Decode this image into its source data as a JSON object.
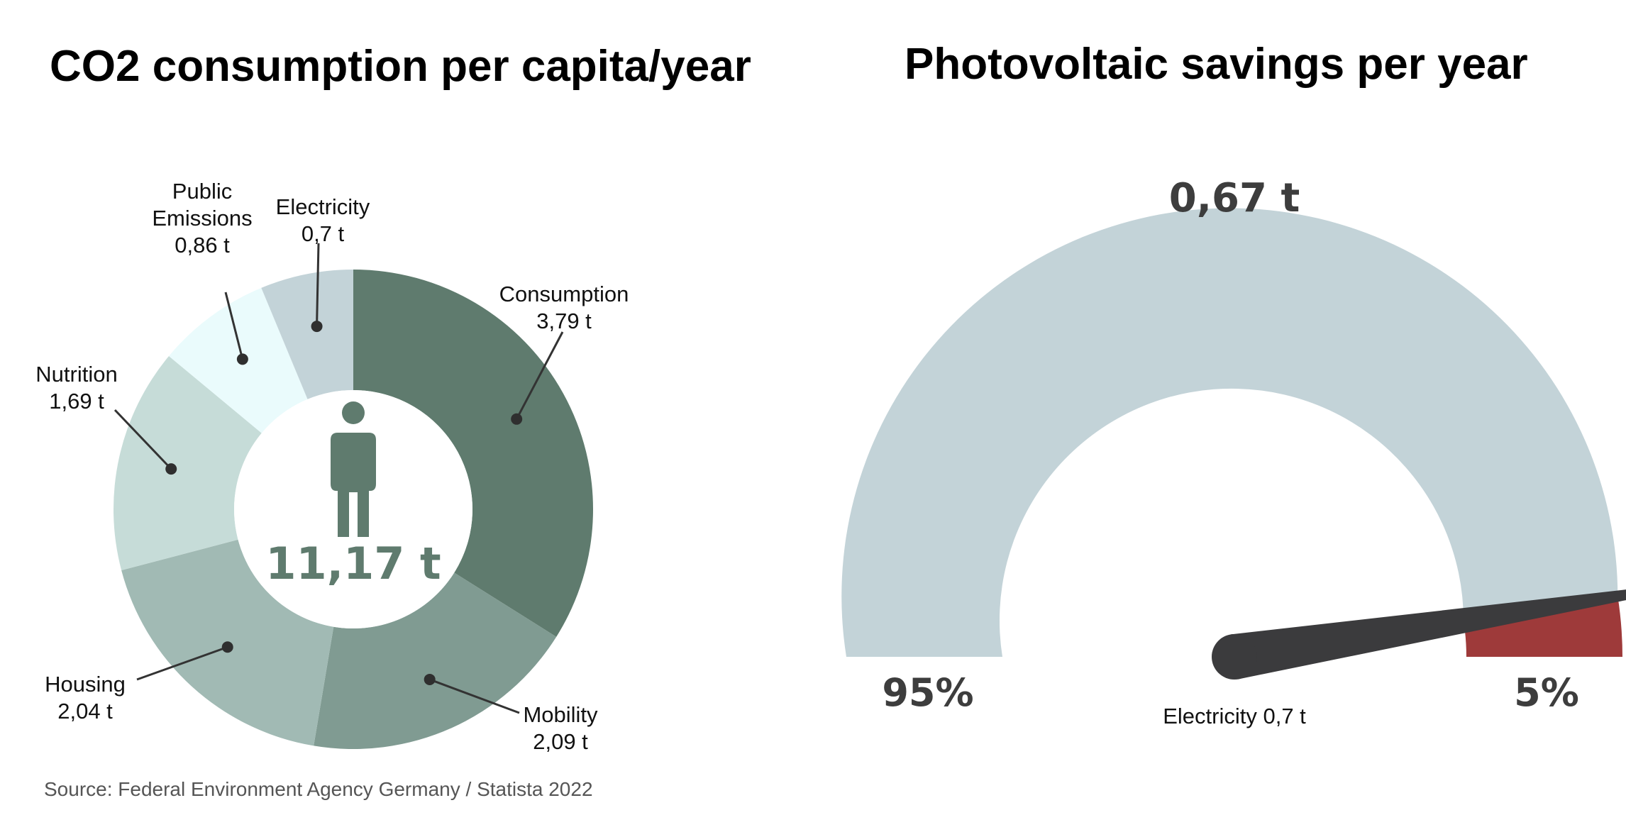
{
  "titles": {
    "left": "CO2 consumption per capita/year",
    "right": "Photovoltaic savings per year"
  },
  "source": "Source: Federal Environment Agency Germany / Statista 2022",
  "chart_data": [
    {
      "type": "pie",
      "title": "CO2 consumption per capita/year",
      "center_label": "11,17 t",
      "center_icon": "person-icon",
      "slices": [
        {
          "name": "Consumption",
          "value": 3.79,
          "label": "3,79 t",
          "color": "#5f7b6e"
        },
        {
          "name": "Mobility",
          "value": 2.09,
          "label": "2,09 t",
          "color": "#809b92"
        },
        {
          "name": "Housing",
          "value": 2.04,
          "label": "2,04 t",
          "color": "#a1bab4"
        },
        {
          "name": "Nutrition",
          "value": 1.69,
          "label": "1,69 t",
          "color": "#c6dcd8"
        },
        {
          "name": "Public Emissions",
          "value": 0.86,
          "label": "0,86 t",
          "color": "#eafbfc"
        },
        {
          "name": "Electricity",
          "value": 0.7,
          "label": "0,7 t",
          "color": "#c3d3d8"
        }
      ]
    },
    {
      "type": "gauge",
      "title": "Photovoltaic savings per year",
      "value_label": "0,67 t",
      "needle_label": "Electricity 0,7 t",
      "segments": [
        {
          "label": "95%",
          "value": 95,
          "color": "#c3d3d8"
        },
        {
          "label": "5%",
          "value": 5,
          "color": "#9e3a3a"
        }
      ],
      "needle_fraction": 0.95,
      "needle_color": "#3b3b3d"
    }
  ]
}
